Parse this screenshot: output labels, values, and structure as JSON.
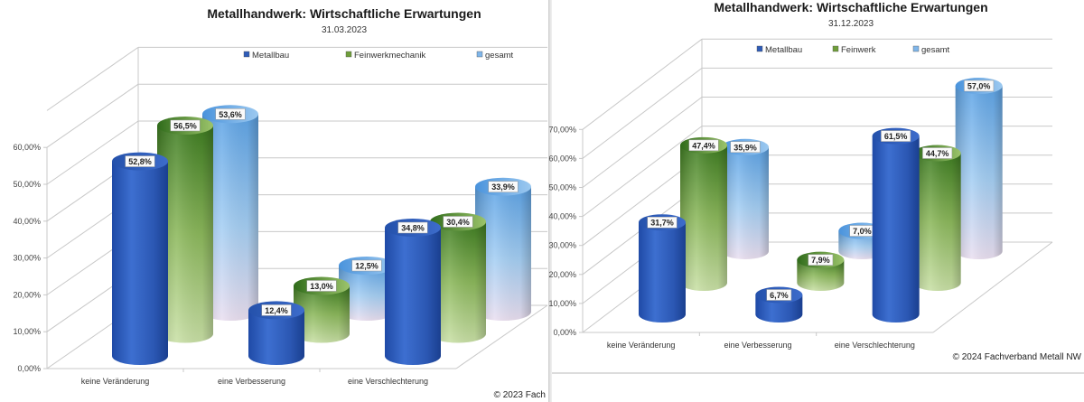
{
  "colors": {
    "metallbau": "#2f5cb8",
    "fein": "#6f9e3a",
    "gesamt": "#7fb6ea"
  },
  "chart_data": [
    {
      "type": "bar",
      "title": "Metallhandwerk: Wirtschaftliche Erwartungen",
      "subtitle": "31.03.2023",
      "categories": [
        "keine Veränderung",
        "eine Verbesserung",
        "eine Verschlechterung"
      ],
      "series": [
        {
          "name": "Metallbau",
          "values": [
            52.8,
            12.4,
            34.8
          ],
          "labels": [
            "52,8%",
            "12,4%",
            "34,8%"
          ]
        },
        {
          "name": "Feinwerkmechanik",
          "values": [
            56.5,
            13.0,
            30.4
          ],
          "labels": [
            "56,5%",
            "13,0%",
            "30,4%"
          ]
        },
        {
          "name": "gesamt",
          "values": [
            53.6,
            12.5,
            33.9
          ],
          "labels": [
            "53,6%",
            "12,5%",
            "33,9%"
          ]
        }
      ],
      "yticks": [
        "0,00%",
        "10,00%",
        "20,00%",
        "30,00%",
        "40,00%",
        "50,00%",
        "60,00%"
      ],
      "ylim": [
        0,
        70
      ],
      "legend": "top",
      "grid": true,
      "copyright": "© 2023 Fach"
    },
    {
      "type": "bar",
      "title": "Metallhandwerk: Wirtschaftliche Erwartungen",
      "subtitle": "31.12.2023",
      "categories": [
        "keine Veränderung",
        "eine Verbesserung",
        "eine Verschlechterung"
      ],
      "series": [
        {
          "name": "Metallbau",
          "values": [
            31.7,
            6.7,
            61.5
          ],
          "labels": [
            "31,7%",
            "6,7%",
            "61,5%"
          ]
        },
        {
          "name": "Feinwerk",
          "values": [
            47.4,
            7.9,
            44.7
          ],
          "labels": [
            "47,4%",
            "7,9%",
            "44,7%"
          ]
        },
        {
          "name": "gesamt",
          "values": [
            35.9,
            7.0,
            57.0
          ],
          "labels": [
            "35,9%",
            "7,0%",
            "57,0%"
          ]
        }
      ],
      "yticks": [
        "0,00%",
        "10,00%",
        "20,00%",
        "30,00%",
        "40,00%",
        "50,00%",
        "60,00%",
        "70,00%"
      ],
      "ylim": [
        0,
        70
      ],
      "legend": "top",
      "grid": true,
      "copyright": "© 2024 Fachverband Metall NW"
    }
  ]
}
